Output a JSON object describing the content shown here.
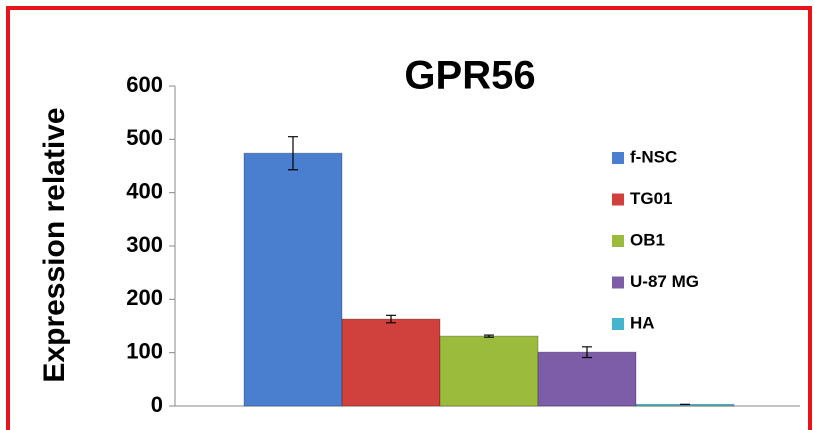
{
  "chart_data": {
    "type": "bar",
    "title": "GPR56",
    "ylabel": "Expression relative",
    "ylim": [
      0,
      600
    ],
    "yticks": [
      0,
      100,
      200,
      300,
      400,
      500,
      600
    ],
    "legend": "right",
    "series": [
      {
        "name": "f-NSC",
        "color": "#4a7fd0",
        "values": [
          474
        ],
        "errors": [
          31
        ]
      },
      {
        "name": "TG01",
        "color": "#d0403c",
        "values": [
          163
        ],
        "errors": [
          7
        ]
      },
      {
        "name": "OB1",
        "color": "#9bbb3c",
        "values": [
          131
        ],
        "errors": [
          2
        ]
      },
      {
        "name": "U-87 MG",
        "color": "#7d5ca8",
        "values": [
          101
        ],
        "errors": [
          10
        ]
      },
      {
        "name": "HA",
        "color": "#44b5cc",
        "values": [
          3
        ],
        "errors": [
          0
        ]
      }
    ]
  }
}
